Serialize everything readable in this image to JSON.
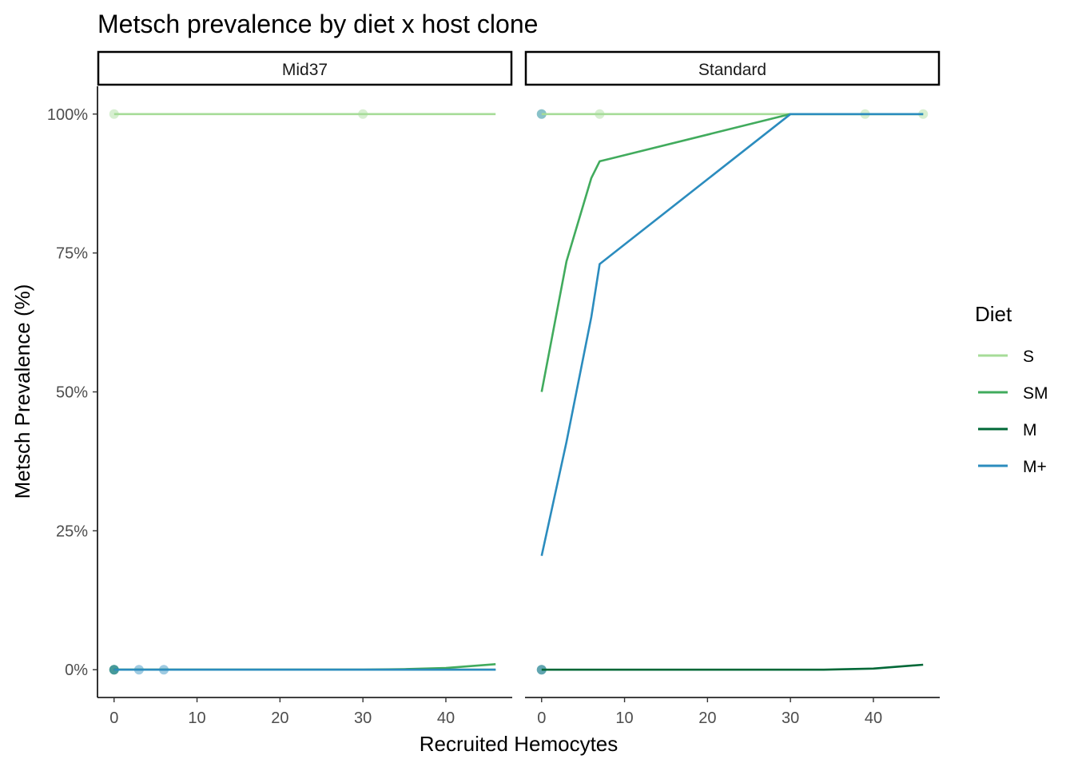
{
  "chart_data": {
    "type": "line",
    "title": "Metsch prevalence by diet x host clone",
    "xlabel": "Recruited Hemocytes",
    "ylabel": "Metsch Prevalence (%)",
    "xlim": [
      -2,
      48
    ],
    "ylim": [
      -5,
      105
    ],
    "x_ticks": [
      0,
      10,
      20,
      30,
      40
    ],
    "y_ticks": [
      0,
      25,
      50,
      75,
      100
    ],
    "y_tick_labels": [
      "0%",
      "25%",
      "50%",
      "75%",
      "100%"
    ],
    "grid": false,
    "legend": {
      "title": "Diet",
      "position": "right",
      "entries": [
        "S",
        "SM",
        "M",
        "M+"
      ]
    },
    "colors": {
      "S": "#a6dc98",
      "SM": "#41ab5d",
      "M": "#006837",
      "M+": "#2b8cbe"
    },
    "facets": [
      {
        "label": "Mid37",
        "series": [
          {
            "name": "S",
            "x": [
              0,
              46
            ],
            "y": [
              100,
              100
            ]
          },
          {
            "name": "SM",
            "x": [
              0,
              30,
              35,
              40,
              46
            ],
            "y": [
              0,
              0,
              0.1,
              0.3,
              1.0
            ]
          },
          {
            "name": "M",
            "x": [
              0,
              46
            ],
            "y": [
              0,
              0
            ]
          },
          {
            "name": "M+",
            "x": [
              0,
              46
            ],
            "y": [
              0,
              0
            ]
          }
        ],
        "points": [
          {
            "series": "S",
            "x": 0,
            "y": 100
          },
          {
            "series": "S",
            "x": 30,
            "y": 100
          },
          {
            "series": "SM",
            "x": 0,
            "y": 0
          },
          {
            "series": "M",
            "x": 0,
            "y": 0
          },
          {
            "series": "M+",
            "x": 0,
            "y": 0
          },
          {
            "series": "M+",
            "x": 3,
            "y": 0
          },
          {
            "series": "M+",
            "x": 6,
            "y": 0
          }
        ]
      },
      {
        "label": "Standard",
        "series": [
          {
            "name": "S",
            "x": [
              0,
              46
            ],
            "y": [
              100,
              100
            ]
          },
          {
            "name": "SM",
            "x": [
              0,
              3,
              6,
              7,
              30,
              46
            ],
            "y": [
              50,
              73.5,
              88.5,
              91.5,
              100,
              100
            ]
          },
          {
            "name": "M",
            "x": [
              0,
              34,
              40,
              46
            ],
            "y": [
              0,
              0,
              0.2,
              0.9
            ]
          },
          {
            "name": "M+",
            "x": [
              0,
              3,
              6,
              7,
              30,
              46
            ],
            "y": [
              20.5,
              41,
              63.5,
              73,
              100,
              100
            ]
          }
        ],
        "points": [
          {
            "series": "S",
            "x": 0,
            "y": 100
          },
          {
            "series": "S",
            "x": 7,
            "y": 100
          },
          {
            "series": "S",
            "x": 39,
            "y": 100
          },
          {
            "series": "S",
            "x": 46,
            "y": 100
          },
          {
            "series": "M+",
            "x": 0,
            "y": 100
          },
          {
            "series": "M",
            "x": 0,
            "y": 0
          },
          {
            "series": "M+",
            "x": 0,
            "y": 0
          }
        ]
      }
    ]
  }
}
